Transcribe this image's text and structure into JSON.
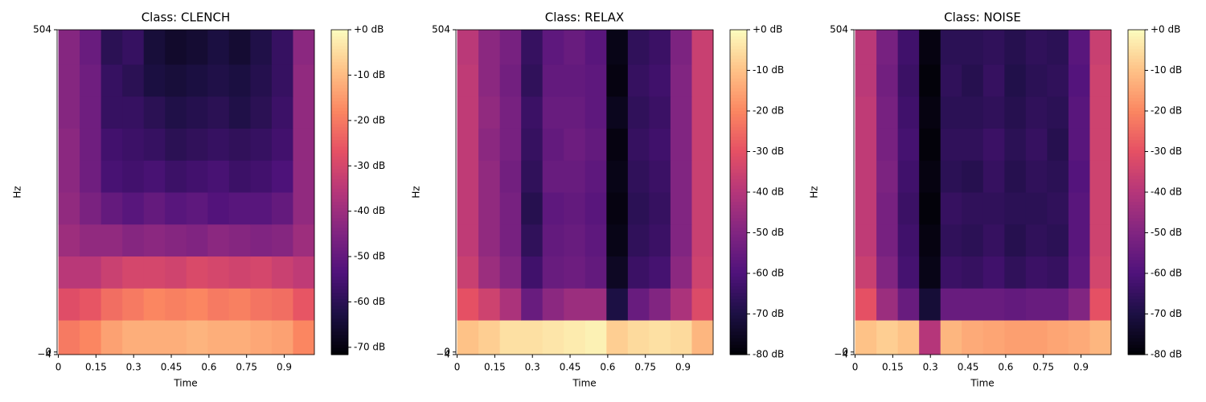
{
  "chart_data": [
    {
      "type": "heatmap",
      "title": "Class: CLENCH",
      "xlabel": "Time",
      "ylabel": "Hz",
      "colormap": "magma",
      "xlim": [
        -0.005,
        1.02
      ],
      "xticks": [
        0,
        0.15,
        0.3,
        0.45,
        0.6,
        0.75,
        0.9
      ],
      "ylim": [
        -4,
        504
      ],
      "yticks": [
        {
          "value": -4,
          "label": "−4"
        },
        0,
        504
      ],
      "clim": [
        -71.6,
        0
      ],
      "cticks": [
        {
          "value": 0,
          "label": "+0 dB"
        },
        {
          "value": -10,
          "label": "-10 dB"
        },
        {
          "value": -20,
          "label": "-20 dB"
        },
        {
          "value": -30,
          "label": "-30 dB"
        },
        {
          "value": -40,
          "label": "-40 dB"
        },
        {
          "value": -50,
          "label": "-50 dB"
        },
        {
          "value": -60,
          "label": "-60 dB"
        },
        {
          "value": -70,
          "label": "-70 dB"
        }
      ],
      "xbins": [
        0,
        0.085,
        0.17,
        0.255,
        0.34,
        0.425,
        0.51,
        0.595,
        0.68,
        0.765,
        0.85,
        0.935,
        1.02
      ],
      "ybins": [
        -4,
        50,
        100,
        150,
        200,
        250,
        300,
        350,
        400,
        450,
        504
      ],
      "z": [
        [
          -20,
          -18,
          -14,
          -12,
          -12,
          -12,
          -11,
          -12,
          -12,
          -13,
          -14,
          -18
        ],
        [
          -28,
          -26,
          -22,
          -20,
          -18,
          -19,
          -18,
          -20,
          -19,
          -21,
          -22,
          -26
        ],
        [
          -35,
          -35,
          -32,
          -30,
          -30,
          -31,
          -29,
          -30,
          -31,
          -30,
          -32,
          -34
        ],
        [
          -40,
          -42,
          -42,
          -44,
          -43,
          -44,
          -45,
          -43,
          -44,
          -45,
          -44,
          -40
        ],
        [
          -42,
          -46,
          -50,
          -52,
          -50,
          -52,
          -51,
          -53,
          -52,
          -52,
          -50,
          -42
        ],
        [
          -43,
          -48,
          -55,
          -56,
          -55,
          -57,
          -56,
          -55,
          -57,
          -56,
          -54,
          -42
        ],
        [
          -43,
          -48,
          -56,
          -57,
          -58,
          -60,
          -59,
          -58,
          -59,
          -58,
          -56,
          -42
        ],
        [
          -44,
          -48,
          -58,
          -58,
          -60,
          -62,
          -61,
          -60,
          -62,
          -60,
          -57,
          -42
        ],
        [
          -44,
          -48,
          -58,
          -60,
          -63,
          -64,
          -63,
          -62,
          -63,
          -61,
          -58,
          -42
        ],
        [
          -44,
          -49,
          -60,
          -58,
          -64,
          -66,
          -65,
          -63,
          -65,
          -62,
          -58,
          -43
        ]
      ]
    },
    {
      "type": "heatmap",
      "title": "Class: RELAX",
      "xlabel": "Time",
      "ylabel": "Hz",
      "colormap": "magma",
      "xlim": [
        -0.005,
        1.02
      ],
      "xticks": [
        0,
        0.15,
        0.3,
        0.45,
        0.6,
        0.75,
        0.9
      ],
      "ylim": [
        -4,
        504
      ],
      "yticks": [
        {
          "value": -4,
          "label": "−4"
        },
        0,
        504
      ],
      "clim": [
        -80,
        0
      ],
      "cticks": [
        {
          "value": 0,
          "label": "+0 dB"
        },
        {
          "value": -10,
          "label": "-10 dB"
        },
        {
          "value": -20,
          "label": "-20 dB"
        },
        {
          "value": -30,
          "label": "-30 dB"
        },
        {
          "value": -40,
          "label": "-40 dB"
        },
        {
          "value": -50,
          "label": "-50 dB"
        },
        {
          "value": -60,
          "label": "-60 dB"
        },
        {
          "value": -70,
          "label": "-70 dB"
        },
        {
          "value": -80,
          "label": "-80 dB"
        }
      ],
      "xbins": [
        0,
        0.085,
        0.17,
        0.255,
        0.34,
        0.425,
        0.51,
        0.595,
        0.68,
        0.765,
        0.85,
        0.935,
        1.02
      ],
      "ybins": [
        -4,
        50,
        100,
        150,
        200,
        250,
        300,
        350,
        400,
        450,
        504
      ],
      "z": [
        [
          -10,
          -8,
          -5,
          -5,
          -4,
          -3,
          -2,
          -8,
          -6,
          -5,
          -6,
          -12
        ],
        [
          -30,
          -35,
          -42,
          -55,
          -48,
          -45,
          -45,
          -70,
          -55,
          -50,
          -42,
          -32
        ],
        [
          -36,
          -45,
          -50,
          -63,
          -55,
          -54,
          -56,
          -75,
          -64,
          -62,
          -48,
          -35
        ],
        [
          -38,
          -47,
          -52,
          -66,
          -56,
          -55,
          -57,
          -77,
          -66,
          -64,
          -50,
          -36
        ],
        [
          -38,
          -47,
          -52,
          -68,
          -57,
          -56,
          -58,
          -78,
          -67,
          -65,
          -50,
          -36
        ],
        [
          -38,
          -47,
          -53,
          -66,
          -55,
          -55,
          -57,
          -77,
          -66,
          -64,
          -50,
          -36
        ],
        [
          -38,
          -48,
          -52,
          -65,
          -56,
          -54,
          -56,
          -78,
          -65,
          -63,
          -50,
          -36
        ],
        [
          -38,
          -47,
          -52,
          -64,
          -55,
          -55,
          -57,
          -76,
          -66,
          -64,
          -50,
          -36
        ],
        [
          -38,
          -48,
          -53,
          -66,
          -56,
          -56,
          -57,
          -78,
          -65,
          -63,
          -50,
          -36
        ],
        [
          -39,
          -48,
          -52,
          -65,
          -57,
          -55,
          -58,
          -77,
          -66,
          -64,
          -51,
          -36
        ]
      ]
    },
    {
      "type": "heatmap",
      "title": "Class: NOISE",
      "xlabel": "Time",
      "ylabel": "Hz",
      "colormap": "magma",
      "xlim": [
        -0.005,
        1.02
      ],
      "xticks": [
        0,
        0.15,
        0.3,
        0.45,
        0.6,
        0.75,
        0.9
      ],
      "ylim": [
        -4,
        504
      ],
      "yticks": [
        {
          "value": -4,
          "label": "−4"
        },
        0,
        504
      ],
      "clim": [
        -80,
        0
      ],
      "cticks": [
        {
          "value": 0,
          "label": "+0 dB"
        },
        {
          "value": -10,
          "label": "-10 dB"
        },
        {
          "value": -20,
          "label": "-20 dB"
        },
        {
          "value": -30,
          "label": "-30 dB"
        },
        {
          "value": -40,
          "label": "-40 dB"
        },
        {
          "value": -50,
          "label": "-50 dB"
        },
        {
          "value": -60,
          "label": "-60 dB"
        },
        {
          "value": -70,
          "label": "-70 dB"
        },
        {
          "value": -80,
          "label": "-80 dB"
        }
      ],
      "xbins": [
        0,
        0.085,
        0.17,
        0.255,
        0.34,
        0.425,
        0.51,
        0.595,
        0.68,
        0.765,
        0.85,
        0.935,
        1.02
      ],
      "ybins": [
        -4,
        50,
        100,
        150,
        200,
        250,
        300,
        350,
        400,
        450,
        504
      ],
      "z": [
        [
          -10,
          -8,
          -10,
          -40,
          -12,
          -14,
          -15,
          -16,
          -16,
          -15,
          -14,
          -12
        ],
        [
          -30,
          -45,
          -55,
          -72,
          -55,
          -55,
          -55,
          -56,
          -55,
          -55,
          -50,
          -30
        ],
        [
          -36,
          -50,
          -62,
          -77,
          -64,
          -65,
          -63,
          -66,
          -64,
          -65,
          -57,
          -34
        ],
        [
          -38,
          -52,
          -63,
          -78,
          -66,
          -67,
          -65,
          -68,
          -66,
          -67,
          -58,
          -35
        ],
        [
          -38,
          -52,
          -64,
          -79,
          -65,
          -66,
          -66,
          -67,
          -67,
          -66,
          -58,
          -35
        ],
        [
          -38,
          -51,
          -63,
          -78,
          -67,
          -68,
          -65,
          -68,
          -66,
          -67,
          -59,
          -35
        ],
        [
          -38,
          -52,
          -62,
          -79,
          -66,
          -66,
          -64,
          -67,
          -65,
          -68,
          -58,
          -35
        ],
        [
          -38,
          -52,
          -63,
          -78,
          -67,
          -67,
          -66,
          -68,
          -66,
          -67,
          -58,
          -35
        ],
        [
          -39,
          -53,
          -64,
          -79,
          -66,
          -68,
          -65,
          -69,
          -67,
          -66,
          -59,
          -35
        ],
        [
          -39,
          -52,
          -63,
          -78,
          -67,
          -67,
          -66,
          -68,
          -66,
          -67,
          -58,
          -36
        ]
      ]
    }
  ]
}
